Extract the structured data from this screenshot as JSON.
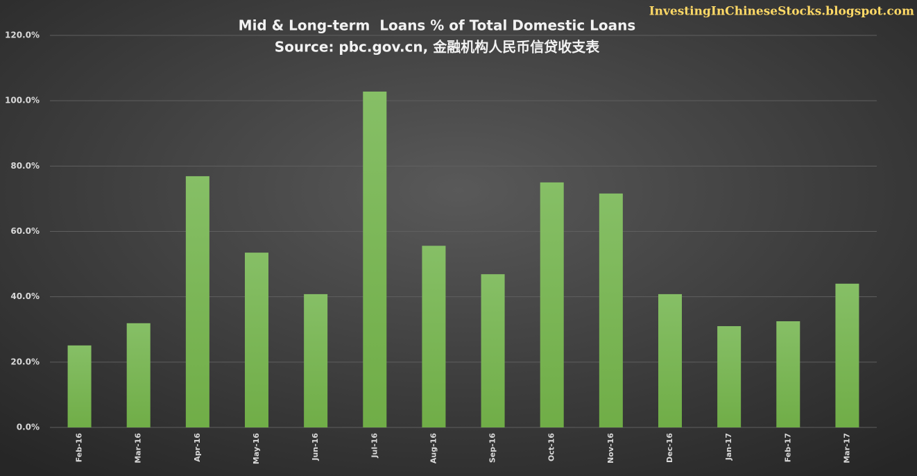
{
  "chart_data": {
    "type": "bar",
    "title": "Mid & Long-term  Loans % of Total Domestic Loans",
    "subtitle": "Source: pbc.gov.cn, 金融机构人民币信贷收支表",
    "watermark": "InvestingInChineseStocks.blogspot.com",
    "categories": [
      "Feb-16",
      "Mar-16",
      "Apr-16",
      "May-16",
      "Jun-16",
      "Jul-16",
      "Aug-16",
      "Sep-16",
      "Oct-16",
      "Nov-16",
      "Dec-16",
      "Jan-17",
      "Feb-17",
      "Mar-17"
    ],
    "values": [
      25.1,
      31.9,
      76.9,
      53.5,
      40.8,
      102.8,
      55.6,
      46.9,
      75.0,
      71.6,
      40.8,
      31.0,
      32.5,
      44.0
    ],
    "color": "#70ad47",
    "ylim": [
      0,
      120
    ],
    "yticks": [
      {
        "value": 0,
        "label": "0.0%"
      },
      {
        "value": 20,
        "label": "20.0%"
      },
      {
        "value": 40,
        "label": "40.0%"
      },
      {
        "value": 60,
        "label": "60.0%"
      },
      {
        "value": 80,
        "label": "80.0%"
      },
      {
        "value": 100,
        "label": "100.0%"
      },
      {
        "value": 120,
        "label": "120.0%"
      }
    ],
    "grid": true
  }
}
